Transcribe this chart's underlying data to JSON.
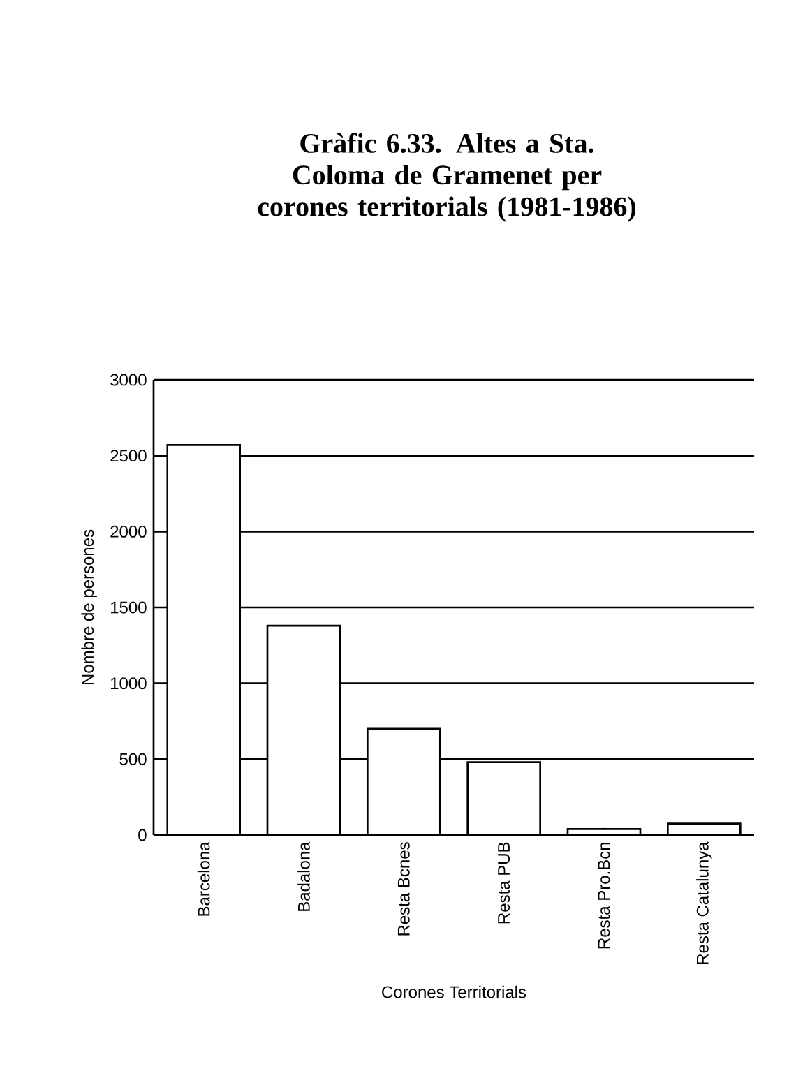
{
  "chart_data": {
    "type": "bar",
    "title": "Gràfic 6.33. Altes a Sta. Coloma de Gramenet per corones territorials (1981-1986)",
    "xlabel": "Corones Territorials",
    "ylabel": "Nombre de persones",
    "categories": [
      "Barcelona",
      "Badalona",
      "Resta Bcnes",
      "Resta PUB",
      "Resta Pro.Bcn",
      "Resta Catalunya"
    ],
    "values": [
      2570,
      1380,
      700,
      480,
      40,
      75
    ],
    "color": "#ffffff",
    "ylim": [
      0,
      3000
    ],
    "yticks": [
      0,
      500,
      1000,
      1500,
      2000,
      2500,
      3000
    ],
    "grid": "y"
  }
}
